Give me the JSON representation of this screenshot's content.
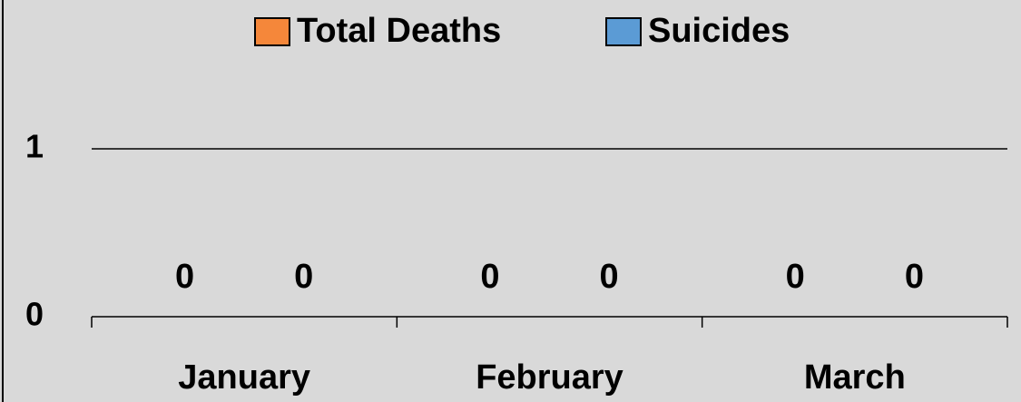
{
  "chart_data": {
    "type": "bar",
    "categories": [
      "January",
      "February",
      "March"
    ],
    "series": [
      {
        "name": "Total Deaths",
        "color": "#f5873a",
        "values": [
          0,
          0,
          0
        ]
      },
      {
        "name": "Suicides",
        "color": "#5b9bd5",
        "values": [
          0,
          0,
          0
        ]
      }
    ],
    "ylim": [
      0,
      1
    ],
    "yticks": [
      0,
      1
    ],
    "grid": true,
    "legend": "top"
  }
}
